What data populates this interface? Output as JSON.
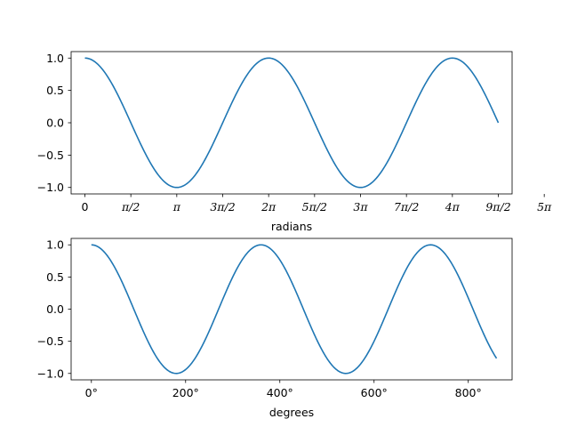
{
  "chart_data": [
    {
      "type": "line",
      "title": "",
      "xlabel": "radians",
      "ylabel": "",
      "xlim": [
        -0.4712,
        14.6084
      ],
      "ylim": [
        -1.1,
        1.1
      ],
      "x_function": "cos",
      "x_domain": [
        0,
        14.1372
      ],
      "x_ticks": [
        0,
        1.5708,
        3.1416,
        4.7124,
        6.2832,
        7.854,
        9.4248,
        10.9956,
        12.5664,
        14.1372,
        15.708
      ],
      "x_tick_labels": [
        "0",
        "π/2",
        "π",
        "3π/2",
        "2π",
        "5π/2",
        "3π",
        "7π/2",
        "4π",
        "9π/2",
        "5π"
      ],
      "y_ticks": [
        1.0,
        0.5,
        0.0,
        -0.5,
        -1.0
      ],
      "y_tick_labels": [
        "1.0",
        "0.5",
        "0.0",
        "−0.5",
        "−1.0"
      ],
      "series": [
        {
          "color": "#1f77b4",
          "x": [
            0,
            1.5708,
            3.1416,
            4.7124,
            6.2832,
            7.854,
            9.4248,
            10.9956,
            12.5664,
            14.1372
          ],
          "y": [
            1.0,
            0.0,
            -1.0,
            0.0,
            1.0,
            0.0,
            -1.0,
            0.0,
            1.0,
            0.0
          ]
        }
      ],
      "grid": false
    },
    {
      "type": "line",
      "title": "",
      "xlabel": "degrees",
      "ylabel": "",
      "xlim": [
        -43,
        893
      ],
      "ylim": [
        -1.1,
        1.1
      ],
      "x_function": "cos-degrees",
      "x_domain": [
        0,
        860
      ],
      "x_ticks": [
        0,
        200,
        400,
        600,
        800
      ],
      "x_tick_labels": [
        "0°",
        "200°",
        "400°",
        "600°",
        "800°"
      ],
      "y_ticks": [
        1.0,
        0.5,
        0.0,
        -0.5,
        -1.0
      ],
      "y_tick_labels": [
        "1.0",
        "0.5",
        "0.0",
        "−0.5",
        "−1.0"
      ],
      "series": [
        {
          "color": "#1f77b4",
          "x": [
            0,
            180,
            360,
            540,
            720,
            860
          ],
          "y": [
            1.0,
            -1.0,
            1.0,
            -1.0,
            1.0,
            -0.766
          ]
        }
      ],
      "grid": false
    }
  ]
}
